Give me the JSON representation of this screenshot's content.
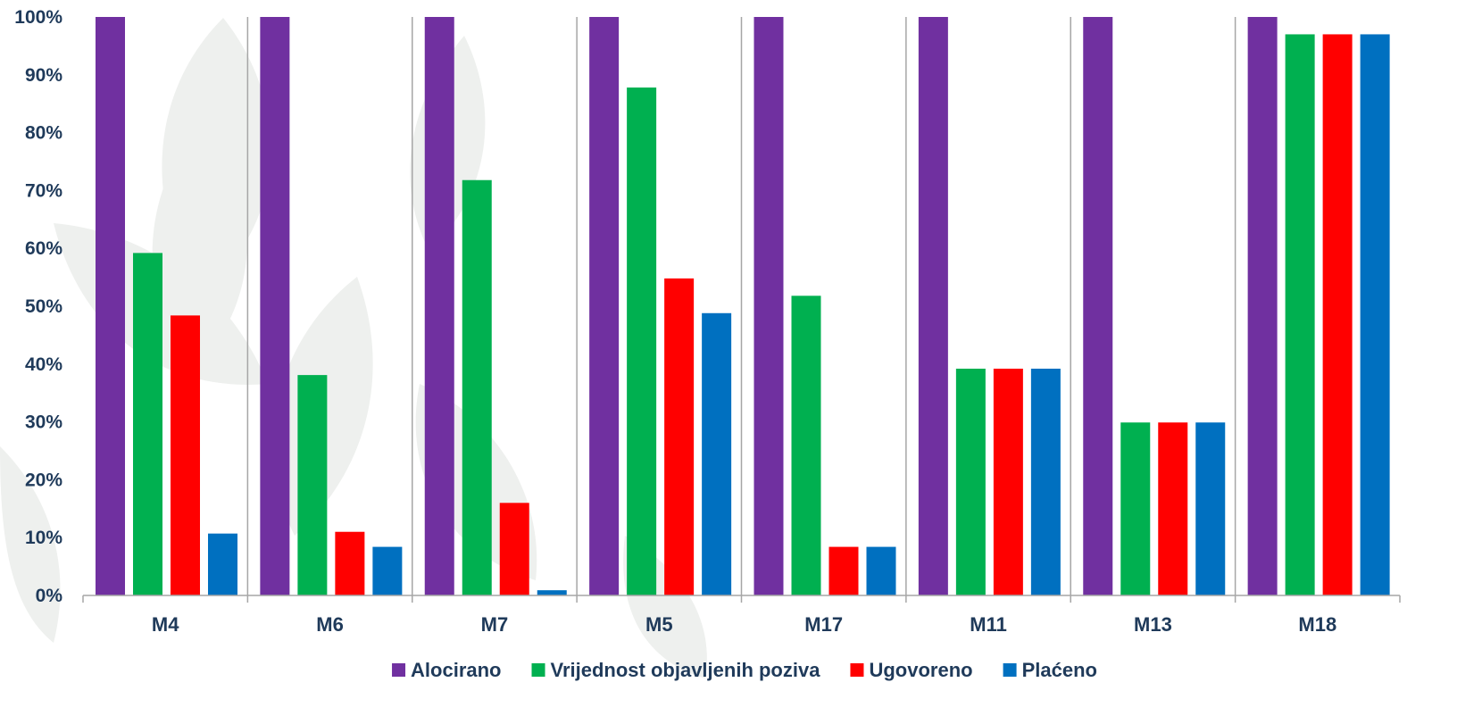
{
  "chart_data": {
    "type": "bar",
    "title": "",
    "xlabel": "",
    "ylabel": "",
    "ylim": [
      0,
      100
    ],
    "y_ticks": [
      "0%",
      "10%",
      "20%",
      "30%",
      "40%",
      "50%",
      "60%",
      "70%",
      "80%",
      "90%",
      "100%"
    ],
    "categories": [
      "M4",
      "M6",
      "M7",
      "M5",
      "M17",
      "M11",
      "M13",
      "M18"
    ],
    "series": [
      {
        "name": "Alocirano",
        "color": "#7030a0",
        "values": [
          100,
          100,
          100,
          100,
          100,
          100,
          100,
          100
        ]
      },
      {
        "name": "Vrijednost objavljenih poziva",
        "color": "#00b050",
        "values": [
          59.2,
          38.1,
          71.8,
          87.8,
          51.8,
          39.2,
          29.9,
          97
        ]
      },
      {
        "name": "Ugovoreno",
        "color": "#ff0000",
        "values": [
          48.4,
          11,
          16,
          54.8,
          8.4,
          39.2,
          29.9,
          97
        ]
      },
      {
        "name": "Plaćeno",
        "color": "#0070c0",
        "values": [
          10.7,
          8.4,
          0.9,
          48.8,
          8.4,
          39.2,
          29.9,
          97
        ]
      }
    ],
    "grid": false,
    "category_separators": true,
    "legend_position": "bottom"
  }
}
